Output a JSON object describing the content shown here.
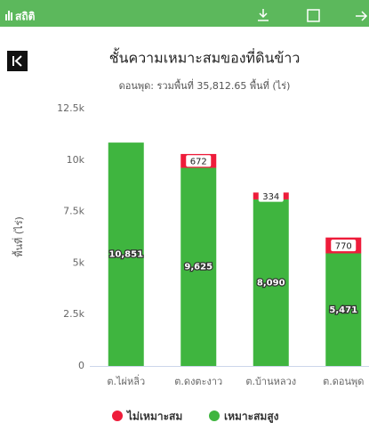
{
  "header": {
    "label": "สถิติ"
  },
  "chart_data": {
    "type": "bar",
    "stacked": true,
    "title": "ชั้นความเหมาะสมของที่ดินข้าว",
    "subtitle": "ดอนพุด: รวมพื้นที่ 35,812.65 พื้นที่ (ไร่)",
    "y_label": "พื้นที่ (ไร่)",
    "categories": [
      "ต.ไผ่หลิ่ว",
      "ต.ดงตะงาว",
      "ต.บ้านหลวง",
      "ต.ดอนพุด"
    ],
    "series": [
      {
        "name": "ไม่เหมาะสม",
        "color": "#ee1c3a",
        "values": [
          null,
          672,
          334,
          770
        ],
        "value_labels": [
          null,
          "672",
          "334",
          "770"
        ]
      },
      {
        "name": "เหมาะสมสูง",
        "color": "#3fb53f",
        "values": [
          10851,
          9625,
          8090,
          5471
        ],
        "value_labels": [
          "10,851",
          "9,625",
          "8,090",
          "5,471"
        ]
      }
    ],
    "ylim": [
      0,
      12500
    ],
    "yticks": [
      0,
      {
        "value": 2500,
        "label": "2.5k"
      },
      {
        "value": 5000,
        "label": "5k"
      },
      {
        "value": 7500,
        "label": "7.5k"
      },
      {
        "value": 10000,
        "label": "10k"
      },
      {
        "value": 12500,
        "label": "12.5k"
      }
    ],
    "grid": false,
    "legend": "bottom"
  }
}
